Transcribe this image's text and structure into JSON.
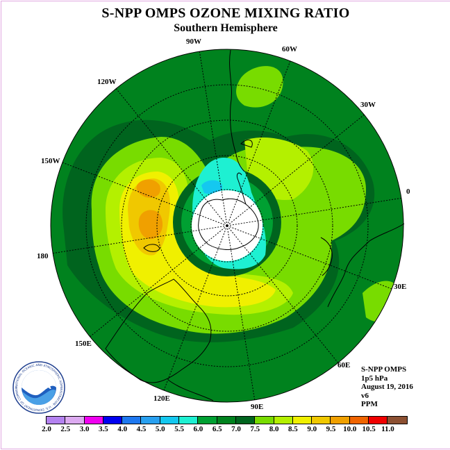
{
  "title": "S-NPP OMPS OZONE MIXING RATIO",
  "subtitle": "Southern Hemisphere",
  "longitude_labels": [
    "90W",
    "60W",
    "30W",
    "0",
    "30E",
    "60E",
    "90E",
    "120E",
    "150E",
    "180",
    "150W",
    "120W"
  ],
  "info": {
    "instrument": "S-NPP OMPS",
    "level": "1p5 hPa",
    "date": "August 19, 2016",
    "version": "v6",
    "units": "PPM"
  },
  "logo": {
    "text": "NOAA",
    "ring_text": "NATIONAL OCEANIC AND ATMOSPHERIC ADMINISTRATION · U.S. DEPARTMENT OF COMMERCE"
  },
  "colorbar": {
    "ticks": [
      "2.0",
      "2.5",
      "3.0",
      "3.5",
      "4.0",
      "4.5",
      "5.0",
      "5.5",
      "6.0",
      "6.5",
      "7.0",
      "7.5",
      "8.0",
      "8.5",
      "9.0",
      "9.5",
      "10.0",
      "10.5",
      "11.0"
    ],
    "colors": [
      "#b482f0",
      "#dcaaf0",
      "#f000f0",
      "#0000f0",
      "#1e78f0",
      "#28a0f0",
      "#14c8f0",
      "#1ef0d2",
      "#00a032",
      "#00821e",
      "#00641e",
      "#78dc00",
      "#b4f000",
      "#f0f000",
      "#f0c800",
      "#f0a000",
      "#f06400",
      "#f00000",
      "#8c5032"
    ]
  }
}
